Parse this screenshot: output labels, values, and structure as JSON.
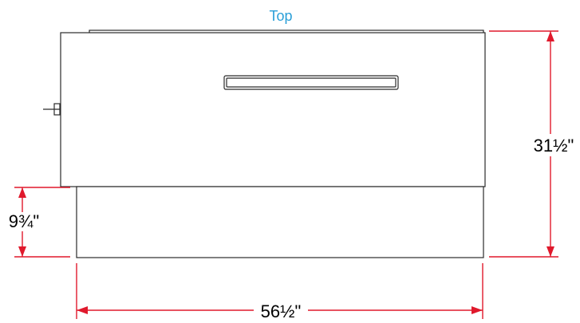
{
  "view_title": "Top",
  "dimensions": {
    "height_overall": "31½\"",
    "base_height": "9¾\"",
    "width_overall": "56½\""
  },
  "colors": {
    "title": "#2a9fd8",
    "dimension_lines": "#e0192c",
    "outline": "#2b2b2b"
  }
}
